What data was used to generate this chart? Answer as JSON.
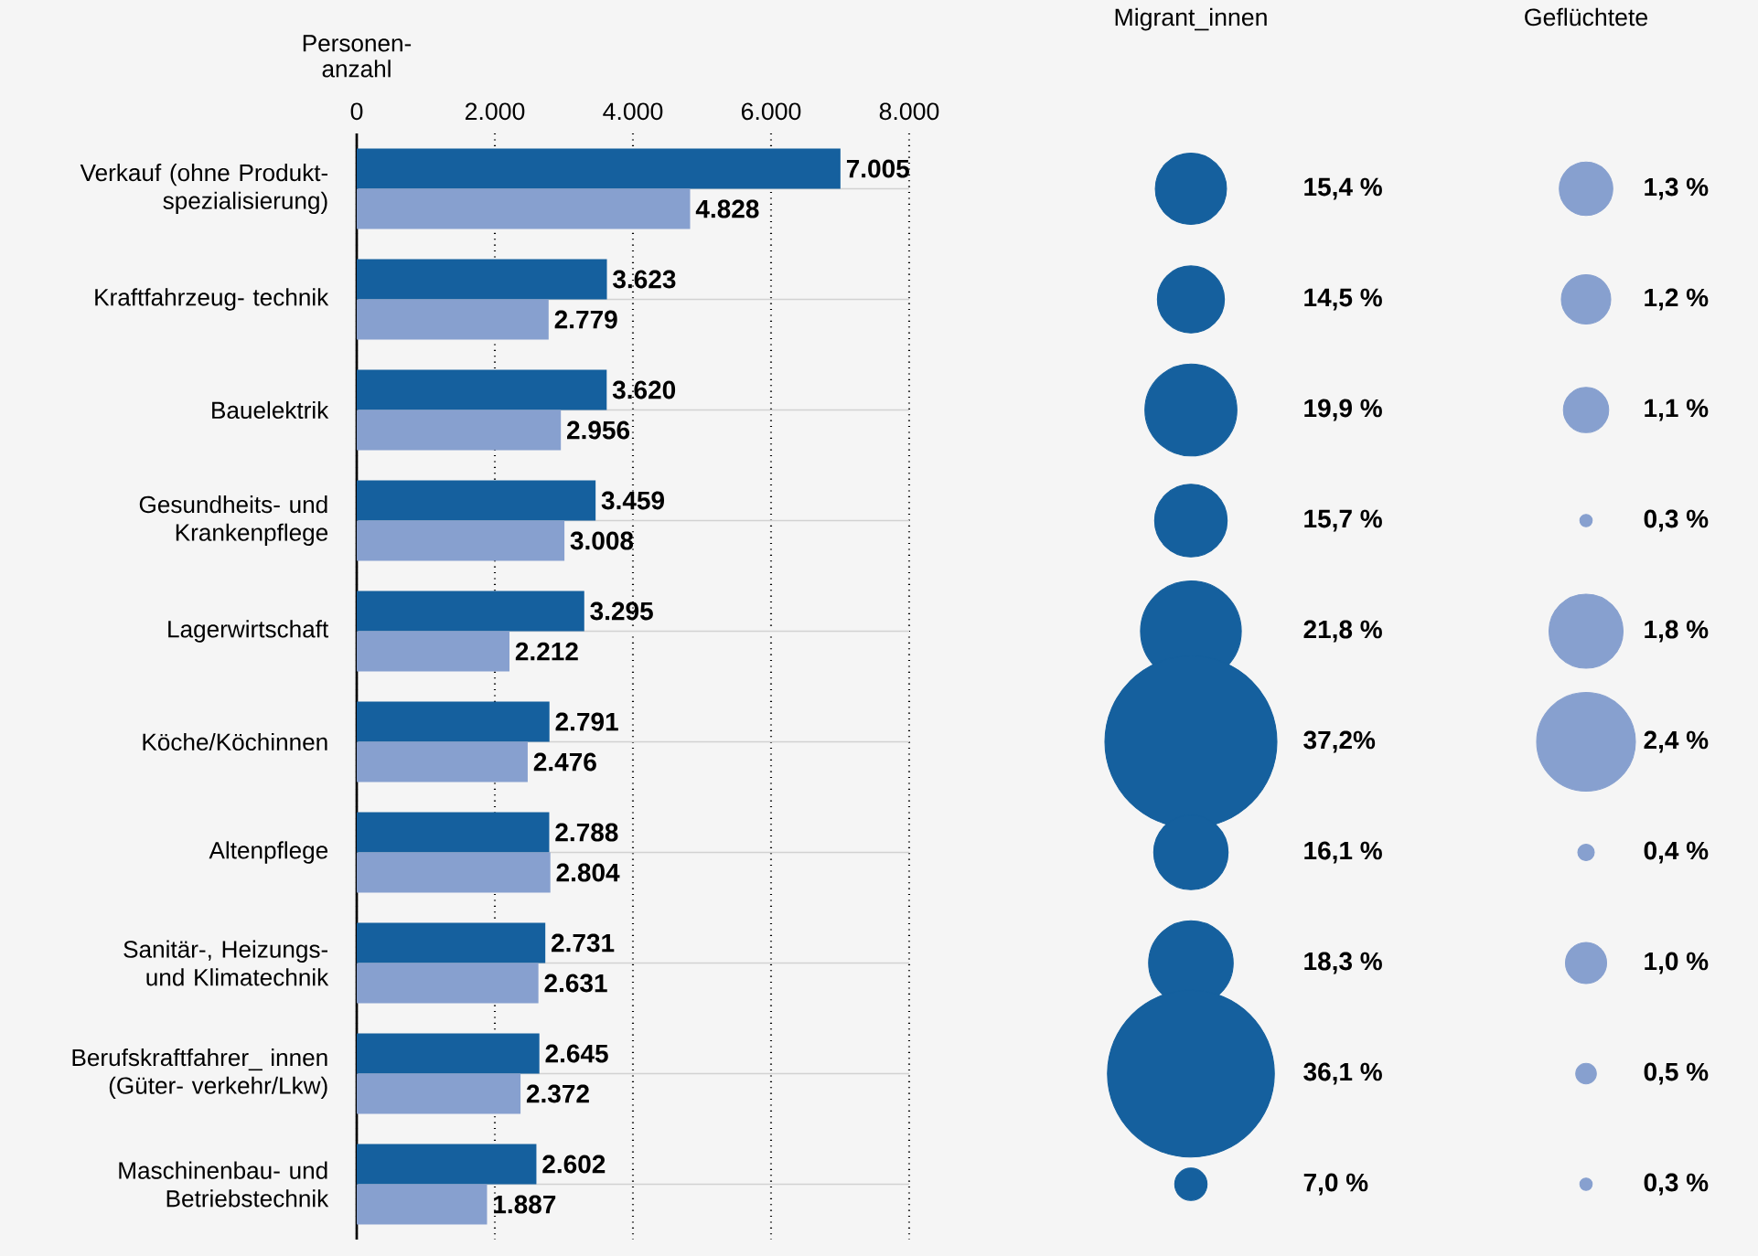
{
  "chart_data": [
    {
      "type": "bar",
      "orientation": "horizontal",
      "xlabel": "Personen- anzahl",
      "categories": [
        "Verkauf (ohne Produkt- spezialisierung)",
        "Kraftfahrzeug- technik",
        "Bauelektrik",
        "Gesundheits- und Krankenpflege",
        "Lagerwirtschaft",
        "Köche/Köchinnen",
        "Altenpflege",
        "Sanitär-, Heizungs- und Klimatechnik",
        "Berufskraftfahrer_ innen (Güter- verkehr/Lkw)",
        "Maschinenbau- und Betriebstechnik"
      ],
      "xlim": [
        0,
        8000
      ],
      "xticks": [
        0,
        {
          "value": 2000,
          "label": "2.000"
        },
        {
          "value": 4000,
          "label": "4.000"
        },
        {
          "value": 6000,
          "label": "6.000"
        },
        {
          "value": 8000,
          "label": "8.000"
        }
      ],
      "grid": true,
      "series": [
        {
          "color": "#15609e",
          "values": [
            7005,
            3623,
            3620,
            3459,
            3295,
            2791,
            2788,
            2731,
            2645,
            2602
          ],
          "value_labels": [
            "7.005",
            "3.623",
            "3.620",
            "3.459",
            "3.295",
            "2.791",
            "2.788",
            "2.731",
            "2.645",
            "2.602"
          ]
        },
        {
          "color": "#87a0cf",
          "values": [
            4828,
            2779,
            2956,
            3008,
            2212,
            2476,
            2804,
            2631,
            2372,
            1887
          ],
          "value_labels": [
            "4.828",
            "2.779",
            "2.956",
            "3.008",
            "2.212",
            "2.476",
            "2.804",
            "2.631",
            "2.372",
            "1.887"
          ]
        }
      ]
    },
    {
      "type": "other",
      "title": "Migrant_innen",
      "categories": [
        null,
        null,
        null,
        null,
        null,
        null,
        null,
        null,
        null,
        null
      ],
      "color": "#15609e",
      "values": [
        15.4,
        14.5,
        19.9,
        15.7,
        21.8,
        37.2,
        16.1,
        18.3,
        36.1,
        7.0
      ],
      "value_labels": [
        "15,4 %",
        "14,5 %",
        "19,9 %",
        "15,7 %",
        "21,8 %",
        "37,2%",
        "16,1 %",
        "18,3 %",
        "36,1 %",
        "7,0 %"
      ]
    },
    {
      "type": "other",
      "title": "Geflüchtete",
      "categories": [
        null,
        null,
        null,
        null,
        null,
        null,
        null,
        null,
        null,
        null
      ],
      "color": "#87a0cf",
      "values": [
        1.3,
        1.2,
        1.1,
        0.3,
        1.8,
        2.4,
        0.4,
        1.0,
        0.5,
        0.3
      ],
      "value_labels": [
        "1,3 %",
        "1,2 %",
        "1,1 %",
        "0,3 %",
        "1,8 %",
        "2,4 %",
        "0,4 %",
        "1,0 %",
        "0,5 %",
        "0,3 %"
      ]
    }
  ]
}
